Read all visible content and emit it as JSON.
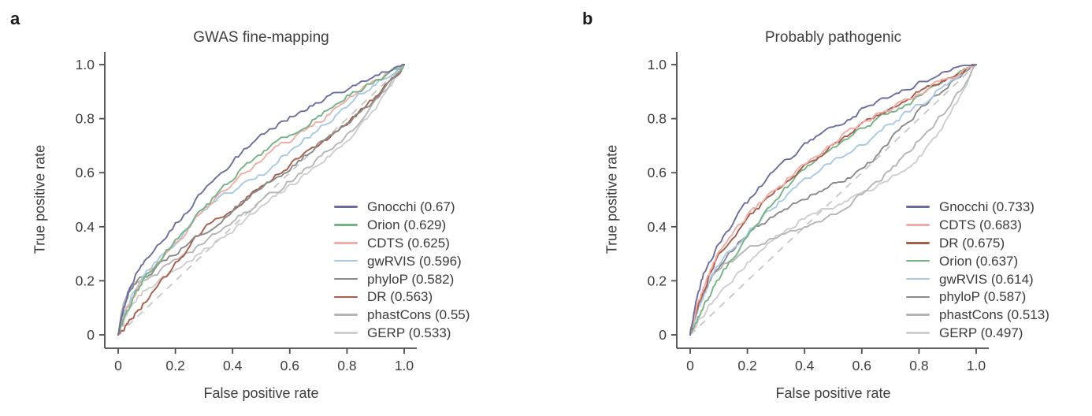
{
  "style": {
    "background": "#ffffff",
    "text_color": "#3d3d3d",
    "axis_color": "#4c4c4c",
    "reference_dash_color": "#c6c6c6"
  },
  "chart_data": [
    {
      "type": "line",
      "panel": "a",
      "title": "GWAS fine-mapping",
      "xlabel": "False positive rate",
      "ylabel": "True positive rate",
      "xlim": [
        0,
        1
      ],
      "ylim": [
        0,
        1
      ],
      "xticks": [
        0,
        0.2,
        0.4,
        0.6,
        0.8,
        1.0
      ],
      "yticks": [
        0,
        0.2,
        0.4,
        0.6,
        0.8,
        1.0
      ],
      "xtick_labels": [
        "0",
        "0.2",
        "0.4",
        "0.6",
        "0.8",
        "1.0"
      ],
      "ytick_labels": [
        "0",
        "0.2",
        "0.4",
        "0.6",
        "0.8",
        "1.0"
      ],
      "grid": false,
      "legend_position": "inside lower right",
      "reference_line": {
        "type": "diagonal",
        "style": "dashed",
        "color": "#c6c6c6",
        "from": [
          0,
          0
        ],
        "to": [
          1,
          1
        ]
      },
      "x": [
        0,
        0.02,
        0.05,
        0.1,
        0.2,
        0.3,
        0.4,
        0.5,
        0.6,
        0.7,
        0.8,
        0.9,
        1.0
      ],
      "series": [
        {
          "name": "Gnocchi",
          "auc": 0.67,
          "legend_label": "Gnocchi (0.67)",
          "color": "#6b6da0",
          "values": [
            0,
            0.1,
            0.2,
            0.28,
            0.41,
            0.53,
            0.64,
            0.73,
            0.8,
            0.86,
            0.91,
            0.96,
            1
          ]
        },
        {
          "name": "Orion",
          "auc": 0.629,
          "legend_label": "Orion (0.629)",
          "color": "#74b384",
          "values": [
            0,
            0.06,
            0.13,
            0.22,
            0.35,
            0.47,
            0.58,
            0.67,
            0.74,
            0.81,
            0.88,
            0.94,
            1
          ]
        },
        {
          "name": "CDTS",
          "auc": 0.625,
          "legend_label": "CDTS (0.625)",
          "color": "#f0aca6",
          "values": [
            0,
            0.07,
            0.14,
            0.22,
            0.34,
            0.46,
            0.56,
            0.65,
            0.72,
            0.79,
            0.87,
            0.94,
            1
          ]
        },
        {
          "name": "gwRVIS",
          "auc": 0.596,
          "legend_label": "gwRVIS (0.596)",
          "color": "#a8c9e6",
          "values": [
            0,
            0.08,
            0.15,
            0.23,
            0.34,
            0.46,
            0.53,
            0.59,
            0.68,
            0.76,
            0.85,
            0.93,
            1
          ]
        },
        {
          "name": "phyloP",
          "auc": 0.582,
          "legend_label": "phyloP (0.582)",
          "color": "#8a8a8a",
          "values": [
            0,
            0.1,
            0.17,
            0.22,
            0.3,
            0.38,
            0.46,
            0.54,
            0.62,
            0.7,
            0.78,
            0.88,
            1
          ]
        },
        {
          "name": "DR",
          "auc": 0.563,
          "legend_label": "DR (0.563)",
          "color": "#a85c49",
          "values": [
            0,
            0.02,
            0.06,
            0.13,
            0.26,
            0.39,
            0.47,
            0.55,
            0.63,
            0.7,
            0.78,
            0.88,
            1
          ]
        },
        {
          "name": "phastCons",
          "auc": 0.55,
          "legend_label": "phastCons (0.55)",
          "color": "#b5b5b5",
          "values": [
            0,
            0.12,
            0.18,
            0.21,
            0.27,
            0.34,
            0.42,
            0.49,
            0.57,
            0.65,
            0.74,
            0.86,
            1
          ]
        },
        {
          "name": "GERP",
          "auc": 0.533,
          "legend_label": "GERP (0.533)",
          "color": "#cecece",
          "values": [
            0,
            0.05,
            0.11,
            0.17,
            0.24,
            0.31,
            0.39,
            0.47,
            0.55,
            0.63,
            0.72,
            0.84,
            1
          ]
        }
      ]
    },
    {
      "type": "line",
      "panel": "b",
      "title": "Probably pathogenic",
      "xlabel": "False positive rate",
      "ylabel": "True positive rate",
      "xlim": [
        0,
        1
      ],
      "ylim": [
        0,
        1
      ],
      "xticks": [
        0,
        0.2,
        0.4,
        0.6,
        0.8,
        1.0
      ],
      "yticks": [
        0,
        0.2,
        0.4,
        0.6,
        0.8,
        1.0
      ],
      "xtick_labels": [
        "0",
        "0.2",
        "0.4",
        "0.6",
        "0.8",
        "1.0"
      ],
      "ytick_labels": [
        "0",
        "0.2",
        "0.4",
        "0.6",
        "0.8",
        "1.0"
      ],
      "grid": false,
      "legend_position": "inside lower right",
      "reference_line": {
        "type": "diagonal",
        "style": "dashed",
        "color": "#c6c6c6",
        "from": [
          0,
          0
        ],
        "to": [
          1,
          1
        ]
      },
      "x": [
        0,
        0.02,
        0.05,
        0.1,
        0.2,
        0.3,
        0.4,
        0.5,
        0.6,
        0.7,
        0.8,
        0.9,
        1.0
      ],
      "series": [
        {
          "name": "Gnocchi",
          "auc": 0.733,
          "legend_label": "Gnocchi (0.733)",
          "color": "#6b6da0",
          "values": [
            0,
            0.12,
            0.23,
            0.33,
            0.49,
            0.61,
            0.7,
            0.77,
            0.83,
            0.88,
            0.93,
            0.97,
            1
          ]
        },
        {
          "name": "CDTS",
          "auc": 0.683,
          "legend_label": "CDTS (0.683)",
          "color": "#f0aca6",
          "values": [
            0,
            0.09,
            0.18,
            0.3,
            0.44,
            0.54,
            0.63,
            0.71,
            0.78,
            0.84,
            0.89,
            0.95,
            1
          ]
        },
        {
          "name": "DR",
          "auc": 0.675,
          "legend_label": "DR (0.675)",
          "color": "#a85c49",
          "values": [
            0,
            0.08,
            0.17,
            0.29,
            0.43,
            0.53,
            0.62,
            0.7,
            0.77,
            0.84,
            0.9,
            0.95,
            1
          ]
        },
        {
          "name": "Orion",
          "auc": 0.637,
          "legend_label": "Orion (0.637)",
          "color": "#74b384",
          "values": [
            0,
            0.05,
            0.11,
            0.21,
            0.36,
            0.5,
            0.61,
            0.69,
            0.76,
            0.82,
            0.88,
            0.94,
            1
          ]
        },
        {
          "name": "gwRVIS",
          "auc": 0.614,
          "legend_label": "gwRVIS (0.614)",
          "color": "#a8c9e6",
          "values": [
            0,
            0.07,
            0.15,
            0.26,
            0.38,
            0.48,
            0.57,
            0.64,
            0.7,
            0.78,
            0.85,
            0.93,
            1
          ]
        },
        {
          "name": "phyloP",
          "auc": 0.587,
          "legend_label": "phyloP (0.587)",
          "color": "#8a8a8a",
          "values": [
            0,
            0.08,
            0.16,
            0.25,
            0.37,
            0.44,
            0.5,
            0.55,
            0.61,
            0.72,
            0.83,
            0.92,
            1
          ]
        },
        {
          "name": "phastCons",
          "auc": 0.513,
          "legend_label": "phastCons (0.513)",
          "color": "#b5b5b5",
          "values": [
            0,
            0.09,
            0.17,
            0.24,
            0.31,
            0.36,
            0.39,
            0.45,
            0.52,
            0.61,
            0.72,
            0.84,
            1
          ]
        },
        {
          "name": "GERP",
          "auc": 0.497,
          "legend_label": "GERP (0.497)",
          "color": "#cecece",
          "values": [
            0,
            0.04,
            0.08,
            0.15,
            0.27,
            0.36,
            0.43,
            0.47,
            0.52,
            0.58,
            0.66,
            0.8,
            1
          ]
        }
      ]
    }
  ]
}
